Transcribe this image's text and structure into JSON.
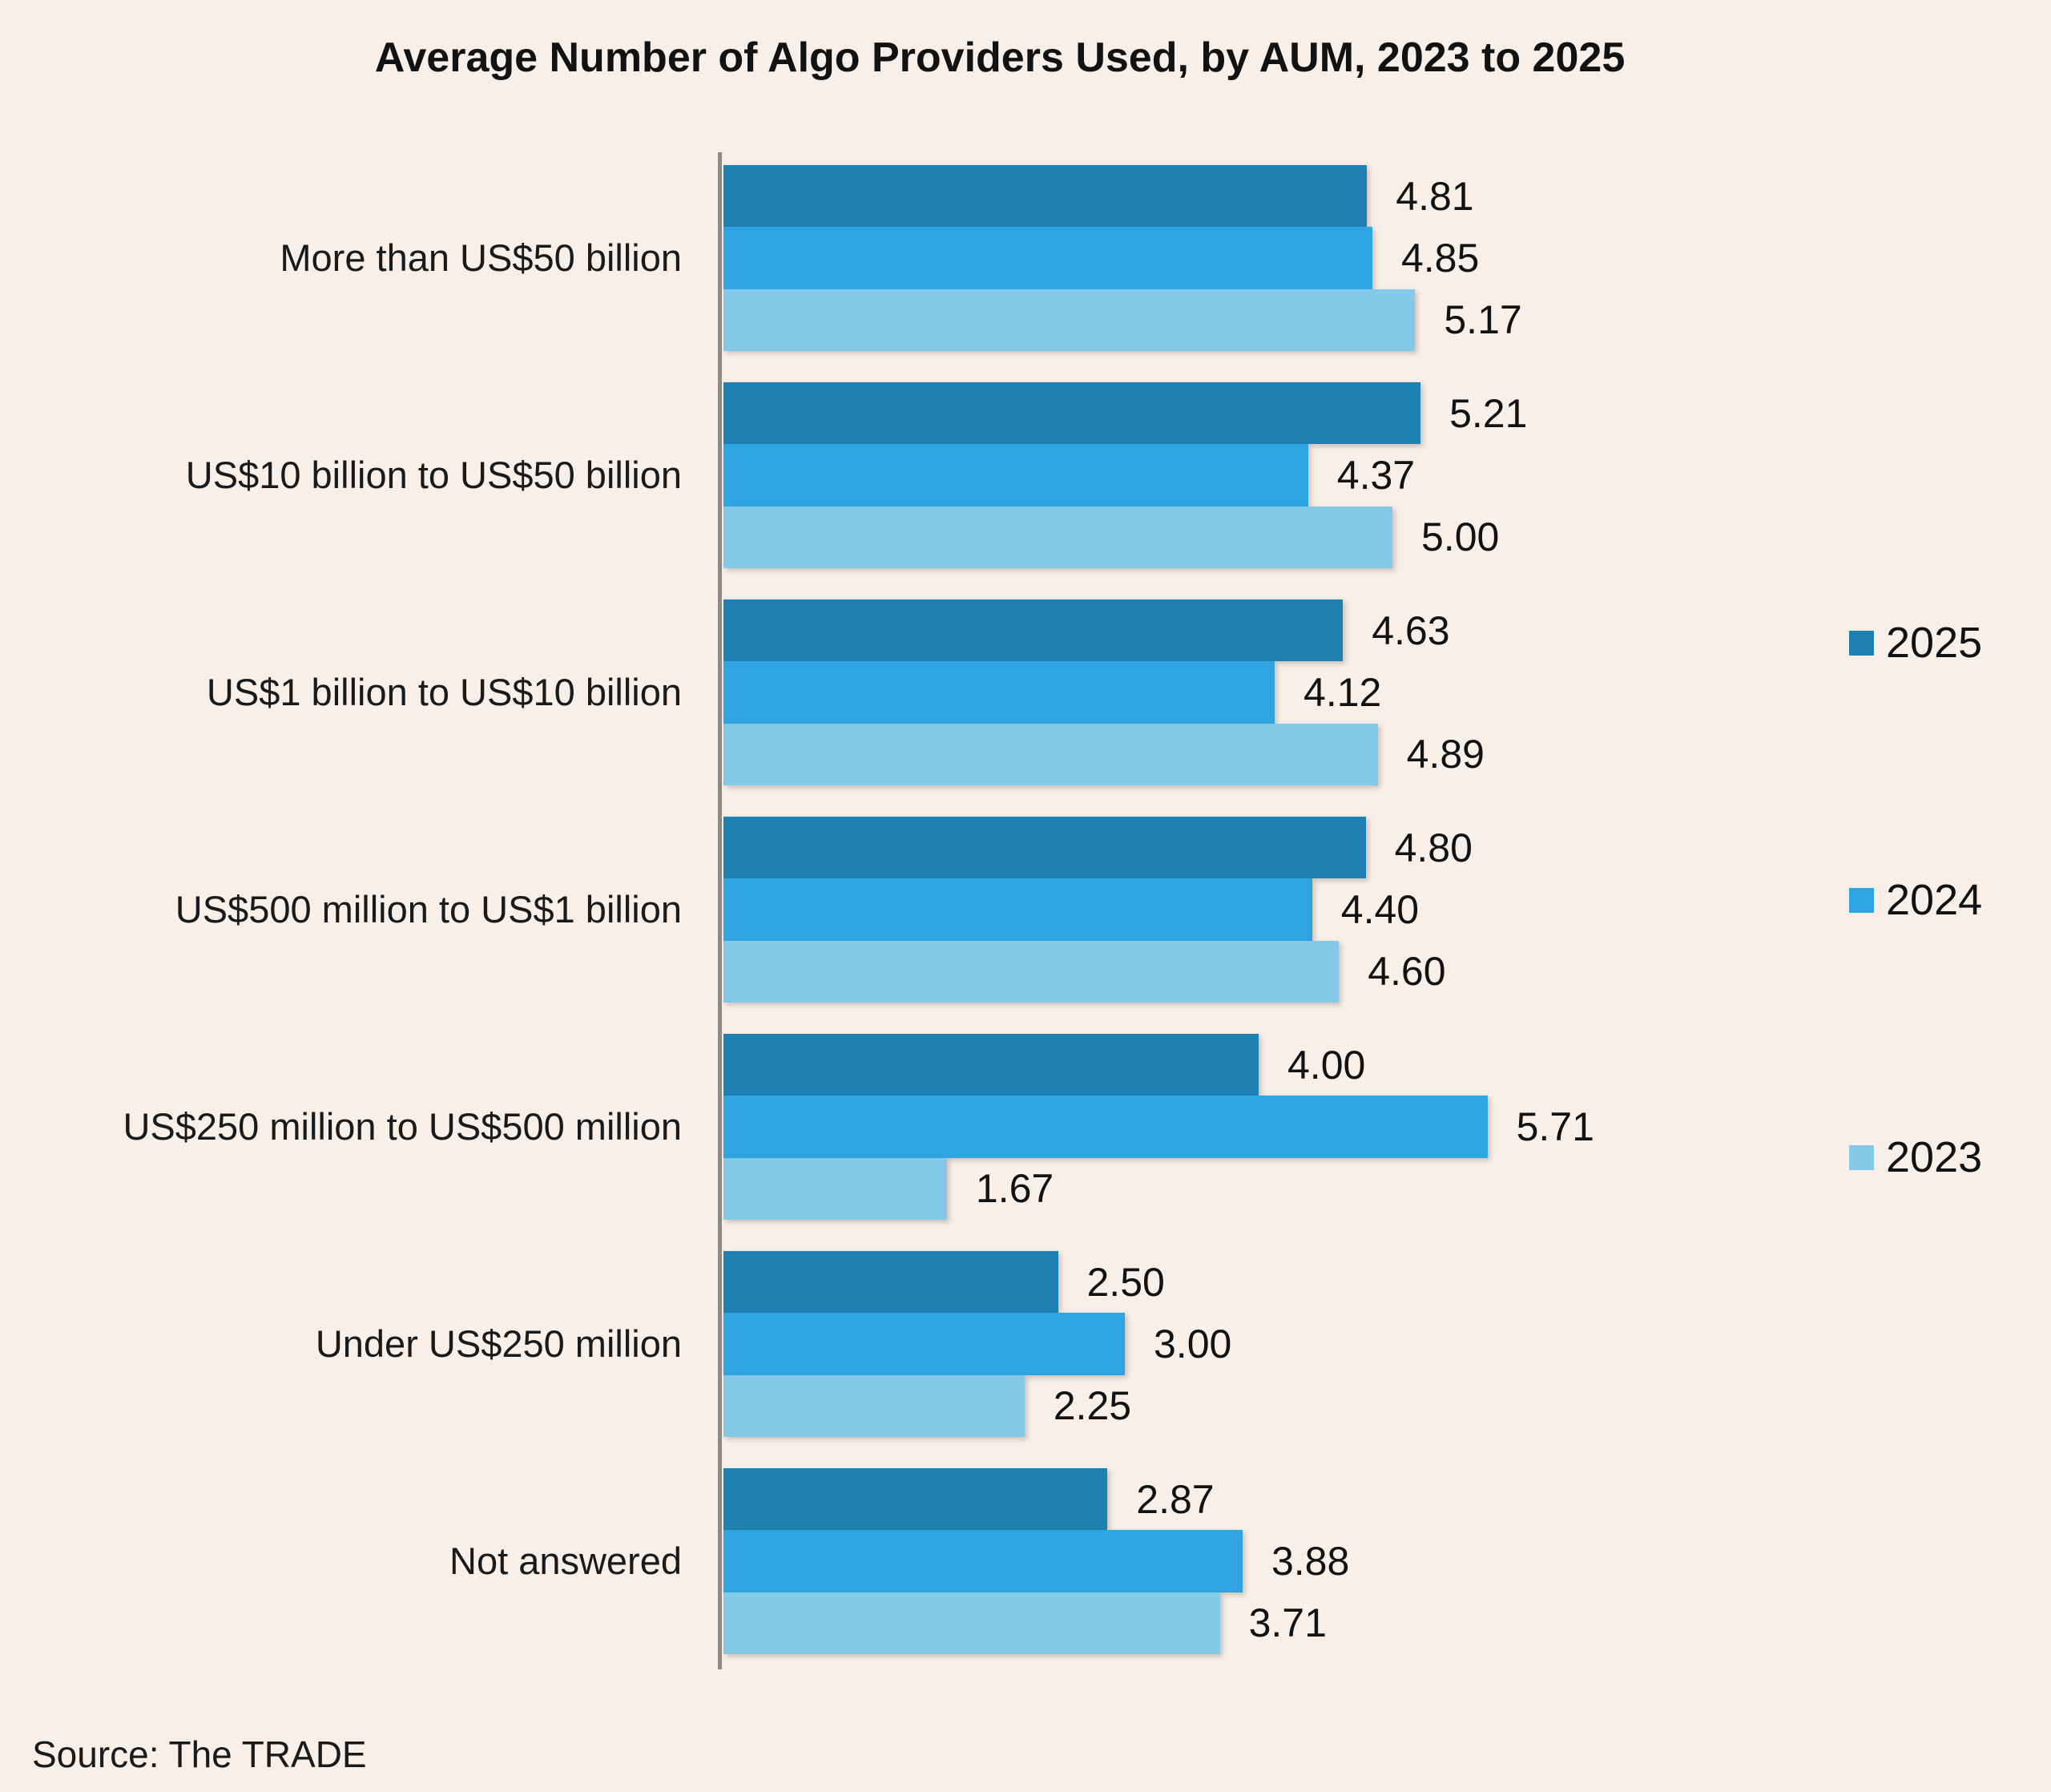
{
  "title": "Average Number of Algo Providers Used, by AUM, 2023 to 2025",
  "source": "Source: The TRADE",
  "colors": {
    "background": "#F8EFE9",
    "axis": "#8d8a88",
    "year_2025": "#1E81B1",
    "year_2024": "#2EA5E0",
    "year_2023": "#85C9E9"
  },
  "legend": [
    {
      "label": "2025",
      "color": "#1E81B1"
    },
    {
      "label": "2024",
      "color": "#2EA5E0"
    },
    {
      "label": "2023",
      "color": "#85C9E9"
    }
  ],
  "chart_data": {
    "type": "bar",
    "orientation": "horizontal",
    "title": "Average Number of Algo Providers Used, by AUM, 2023 to 2025",
    "xlabel": "",
    "ylabel": "",
    "xlim": [
      0,
      6
    ],
    "grid": false,
    "legend_position": "right",
    "value_decimals": 2,
    "categories": [
      "More than US$50 billion",
      "US$10 billion to US$50 billion",
      "US$1 billion to US$10 billion",
      "US$500 million to US$1 billion",
      "US$250 million to US$500 million",
      "Under US$250 million",
      "Not answered"
    ],
    "series": [
      {
        "name": "2025",
        "color": "#1E81B1",
        "values": [
          4.81,
          5.21,
          4.63,
          4.8,
          4.0,
          2.5,
          2.87
        ]
      },
      {
        "name": "2024",
        "color": "#2EA5E0",
        "values": [
          4.85,
          4.37,
          4.12,
          4.4,
          5.71,
          3.0,
          3.88
        ]
      },
      {
        "name": "2023",
        "color": "#85C9E9",
        "values": [
          5.17,
          5.0,
          4.89,
          4.6,
          1.67,
          2.25,
          3.71
        ]
      }
    ]
  }
}
